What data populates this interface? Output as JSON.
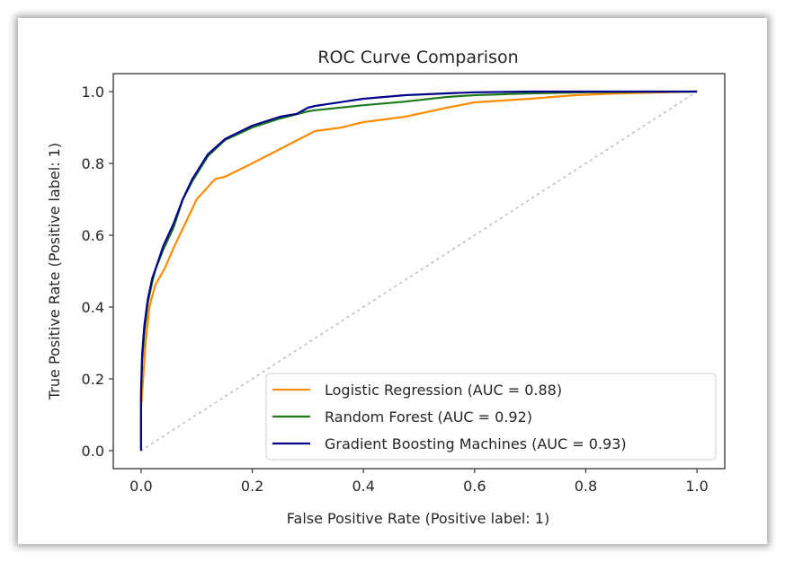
{
  "chart_data": {
    "type": "line",
    "title": "ROC Curve Comparison",
    "xlabel": "False Positive Rate (Positive label: 1)",
    "ylabel": "True Positive Rate (Positive label: 1)",
    "xlim": [
      -0.05,
      1.05
    ],
    "ylim": [
      -0.05,
      1.05
    ],
    "xticks": [
      0.0,
      0.2,
      0.4,
      0.6,
      0.8,
      1.0
    ],
    "yticks": [
      0.0,
      0.2,
      0.4,
      0.6,
      0.8,
      1.0
    ],
    "xtick_labels": [
      "0.0",
      "0.2",
      "0.4",
      "0.6",
      "0.8",
      "1.0"
    ],
    "ytick_labels": [
      "0.0",
      "0.2",
      "0.4",
      "0.6",
      "0.8",
      "1.0"
    ],
    "grid": false,
    "legend_position": "lower-right",
    "series": [
      {
        "name": "Logistic Regression (AUC = 0.88)",
        "color": "#ff8c00",
        "style": "solid",
        "x": [
          0.0,
          0.0,
          0.004,
          0.008,
          0.015,
          0.025,
          0.042,
          0.06,
          0.079,
          0.1,
          0.133,
          0.151,
          0.2,
          0.25,
          0.313,
          0.36,
          0.4,
          0.475,
          0.55,
          0.6,
          0.7,
          0.78,
          0.86,
          1.0
        ],
        "y": [
          0.0,
          0.12,
          0.207,
          0.3,
          0.4,
          0.46,
          0.506,
          0.57,
          0.631,
          0.7,
          0.756,
          0.763,
          0.8,
          0.84,
          0.89,
          0.9,
          0.915,
          0.93,
          0.955,
          0.97,
          0.98,
          0.99,
          0.995,
          1.0
        ]
      },
      {
        "name": "Random Forest (AUC = 0.92)",
        "color": "#1f7a1f",
        "style": "solid",
        "x": [
          0.0,
          0.0,
          0.002,
          0.006,
          0.012,
          0.02,
          0.026,
          0.04,
          0.058,
          0.075,
          0.092,
          0.12,
          0.151,
          0.2,
          0.25,
          0.3,
          0.313,
          0.4,
          0.475,
          0.55,
          0.6,
          0.7,
          0.8,
          1.0
        ],
        "y": [
          0.0,
          0.15,
          0.25,
          0.33,
          0.41,
          0.47,
          0.506,
          0.56,
          0.62,
          0.7,
          0.75,
          0.82,
          0.865,
          0.9,
          0.925,
          0.945,
          0.948,
          0.962,
          0.972,
          0.985,
          0.99,
          0.995,
          0.998,
          1.0
        ]
      },
      {
        "name": "Gradient Boosting Machines (AUC = 0.93)",
        "color": "#00008b",
        "style": "solid",
        "x": [
          0.0,
          0.0,
          0.002,
          0.006,
          0.012,
          0.02,
          0.026,
          0.04,
          0.058,
          0.075,
          0.092,
          0.12,
          0.151,
          0.2,
          0.25,
          0.28,
          0.3,
          0.313,
          0.4,
          0.475,
          0.55,
          0.6,
          0.7,
          1.0
        ],
        "y": [
          0.0,
          0.17,
          0.27,
          0.35,
          0.42,
          0.48,
          0.506,
          0.57,
          0.631,
          0.7,
          0.756,
          0.825,
          0.868,
          0.905,
          0.93,
          0.938,
          0.955,
          0.96,
          0.98,
          0.99,
          0.995,
          0.998,
          1.0,
          1.0
        ]
      },
      {
        "name": "chance",
        "color": "#c0c0c0",
        "style": "dotted",
        "x": [
          0.0,
          1.0
        ],
        "y": [
          0.0,
          1.0
        ]
      }
    ],
    "legend": [
      {
        "label": "Logistic Regression (AUC = 0.88)",
        "color": "#ff8c00"
      },
      {
        "label": "Random Forest (AUC = 0.92)",
        "color": "#1f7a1f"
      },
      {
        "label": "Gradient Boosting Machines (AUC = 0.93)",
        "color": "#00008b"
      }
    ]
  }
}
